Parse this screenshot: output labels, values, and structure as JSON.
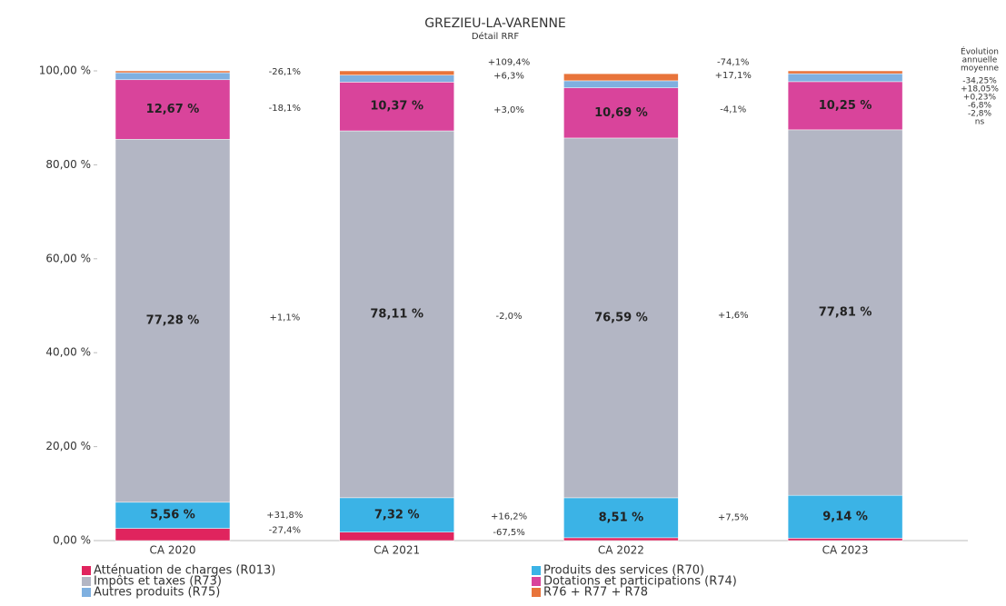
{
  "chart_data": {
    "type": "bar",
    "stacked": true,
    "title": "GREZIEU-LA-VARENNE",
    "subtitle": "Détail RRF",
    "average_title": [
      "Évolution",
      "annuelle",
      "moyenne"
    ],
    "categories": [
      "CA 2020",
      "CA 2021",
      "CA 2022",
      "CA 2023"
    ],
    "ylim": [
      0,
      100
    ],
    "yticks": [
      {
        "value": 0,
        "label": "0,00 %"
      },
      {
        "value": 20,
        "label": "20,00 %"
      },
      {
        "value": 40,
        "label": "40,00 %"
      },
      {
        "value": 60,
        "label": "60,00 %"
      },
      {
        "value": 80,
        "label": "80,00 %"
      },
      {
        "value": 100,
        "label": "100,00 %"
      }
    ],
    "grid": false,
    "series": [
      {
        "name": "Atténuation de charges (R013)",
        "color": "#e0245e",
        "values": [
          2.6,
          1.8,
          0.6,
          0.5
        ],
        "evolutions": [
          "-27,4%",
          "-67,5%",
          null
        ],
        "average": "-34,25%"
      },
      {
        "name": "Produits des services (R70)",
        "color": "#3bb3e6",
        "values": [
          5.56,
          7.32,
          8.51,
          9.14
        ],
        "value_labels": [
          "5,56 %",
          "7,32 %",
          "8,51 %",
          "9,14 %"
        ],
        "evolutions": [
          "+31,8%",
          "+16,2%",
          "+7,5%"
        ],
        "average": "+18,05%"
      },
      {
        "name": "Impôts et taxes (R73)",
        "color": "#b3b6c4",
        "values": [
          77.28,
          78.11,
          76.59,
          77.81
        ],
        "value_labels": [
          "77,28 %",
          "78,11 %",
          "76,59 %",
          "77,81 %"
        ],
        "evolutions": [
          "+1,1%",
          "-2,0%",
          "+1,6%"
        ],
        "average": "+0,23%"
      },
      {
        "name": "Dotations et participations (R74)",
        "color": "#d9449b",
        "values": [
          12.67,
          10.37,
          10.69,
          10.25
        ],
        "value_labels": [
          "12,67 %",
          "10,37 %",
          "10,69 %",
          "10,25 %"
        ],
        "evolutions": [
          "-18,1%",
          "+3,0%",
          "-4,1%"
        ],
        "average": "-6,8%"
      },
      {
        "name": "Autres produits (R75)",
        "color": "#7fb0e0",
        "values": [
          1.5,
          1.5,
          1.5,
          1.7
        ],
        "evolutions": [
          "-26,1%",
          "+6,3%",
          "+17,1%"
        ],
        "average": "-2,8%"
      },
      {
        "name": "R76 + R77 + R78",
        "color": "#e8743b",
        "values": [
          0.39,
          0.9,
          1.51,
          0.6
        ],
        "evolutions": [
          null,
          "+109,4%",
          "-74,1%"
        ],
        "average": "ns"
      }
    ]
  }
}
